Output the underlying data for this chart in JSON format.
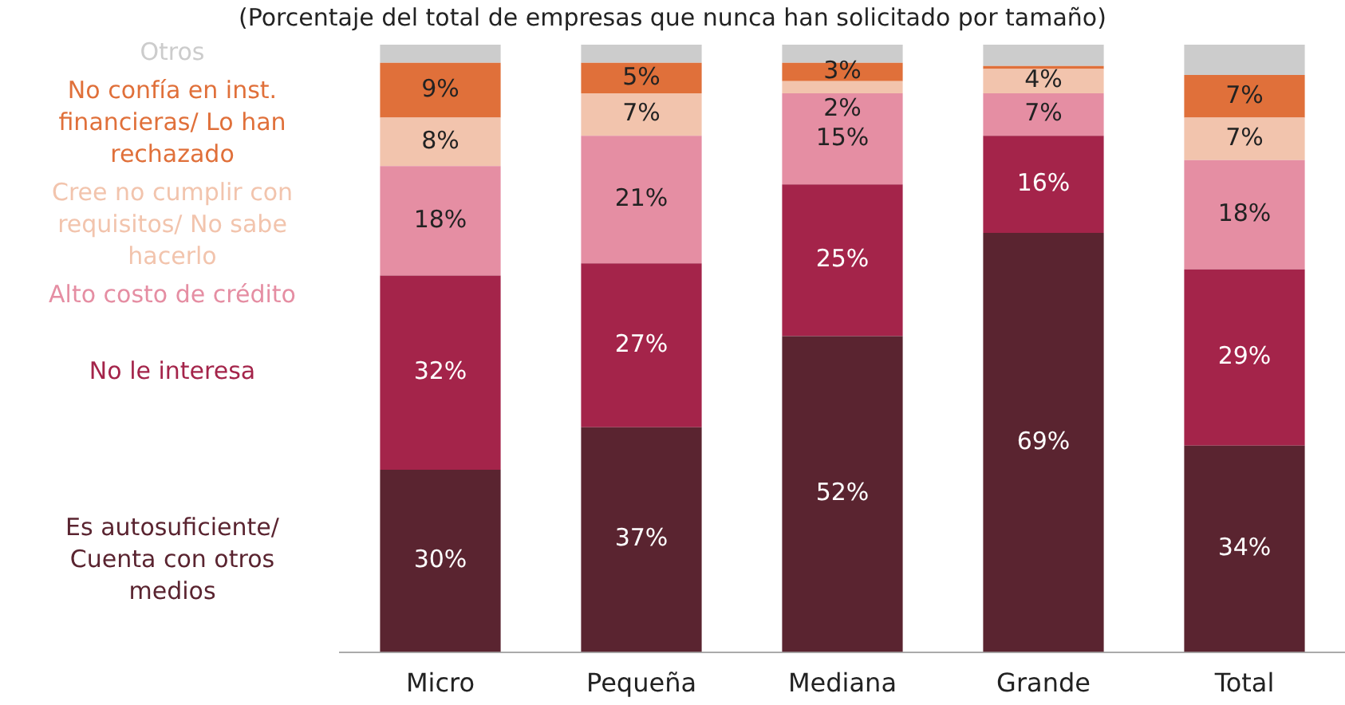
{
  "chart_data": {
    "type": "bar",
    "stacked": true,
    "subtitle": "(Porcentaje del total de empresas que nunca han solicitado por tamaño)",
    "categories": [
      "Micro",
      "Pequeña",
      "Mediana",
      "Grande",
      "Total"
    ],
    "ylim": [
      0,
      100
    ],
    "tick_labels": "x",
    "series": [
      {
        "name": "Es autosuficiente/ Cuenta con otros medios",
        "color": "#5a2430",
        "values": [
          30,
          37,
          52,
          69,
          34
        ],
        "value_labels": [
          "30%",
          "37%",
          "52%",
          "69%",
          "34%"
        ]
      },
      {
        "name": "No le interesa",
        "color": "#a4244a",
        "values": [
          32,
          27,
          25,
          16,
          29
        ],
        "value_labels": [
          "32%",
          "27%",
          "25%",
          "16%",
          "29%"
        ]
      },
      {
        "name": "Alto costo de crédito",
        "color": "#e58ea3",
        "values": [
          18,
          21,
          15,
          7,
          18
        ],
        "value_labels": [
          "18%",
          "21%",
          "15%",
          "7%",
          "18%"
        ]
      },
      {
        "name": "Cree no cumplir con requisitos/ No sabe hacerlo",
        "color": "#f2c4ad",
        "values": [
          8,
          7,
          2,
          4,
          7
        ],
        "value_labels": [
          "8%",
          "7%",
          "2%",
          "4%",
          "7%"
        ]
      },
      {
        "name": "No confía en inst. financieras/ Lo han rechazado",
        "color": "#e0703a",
        "values": [
          9,
          5,
          3,
          0.5,
          7
        ],
        "value_labels": [
          "9%",
          "5%",
          "3%",
          null,
          "7%"
        ]
      },
      {
        "name": "Otros",
        "color": "#cccccc",
        "values": [
          3,
          3,
          3,
          3.5,
          5
        ]
      }
    ]
  }
}
